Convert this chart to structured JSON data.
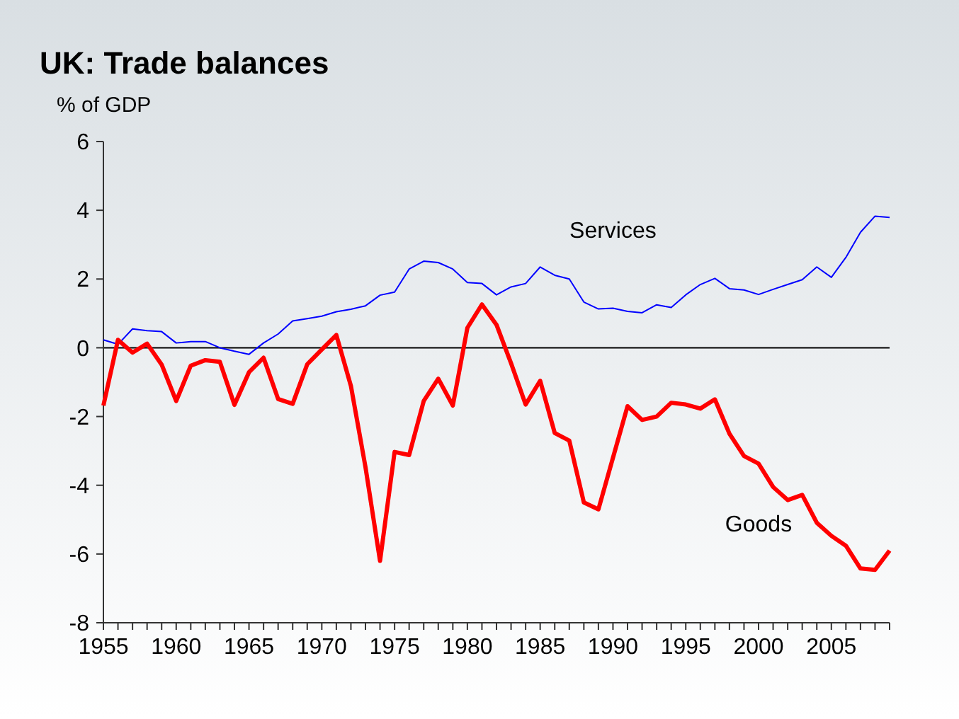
{
  "chart_data": {
    "type": "line",
    "title": "UK: Trade balances",
    "ylabel": "% of GDP",
    "x": [
      1955,
      1956,
      1957,
      1958,
      1959,
      1960,
      1961,
      1962,
      1963,
      1964,
      1965,
      1966,
      1967,
      1968,
      1969,
      1970,
      1971,
      1972,
      1973,
      1974,
      1975,
      1976,
      1977,
      1978,
      1979,
      1980,
      1981,
      1982,
      1983,
      1984,
      1985,
      1986,
      1987,
      1988,
      1989,
      1990,
      1991,
      1992,
      1993,
      1994,
      1995,
      1996,
      1997,
      1998,
      1999,
      2000,
      2001,
      2002,
      2003,
      2004,
      2005,
      2006,
      2007,
      2008,
      2009
    ],
    "series": [
      {
        "name": "Services",
        "color": "#0000ff",
        "values": [
          0.23,
          0.1,
          0.55,
          0.5,
          0.47,
          0.14,
          0.18,
          0.18,
          0,
          -0.1,
          -0.19,
          0.14,
          0.4,
          0.78,
          0.85,
          0.92,
          1.05,
          1.12,
          1.22,
          1.53,
          1.62,
          2.29,
          2.52,
          2.48,
          2.29,
          1.9,
          1.87,
          1.54,
          1.77,
          1.87,
          2.35,
          2.11,
          2.0,
          1.33,
          1.13,
          1.15,
          1.06,
          1.02,
          1.25,
          1.17,
          1.54,
          1.84,
          2.02,
          1.72,
          1.68,
          1.55,
          1.7,
          1.84,
          1.98,
          2.35,
          2.05,
          2.63,
          3.36,
          3.83,
          3.79
        ]
      },
      {
        "name": "Goods",
        "color": "#ff0000",
        "values": [
          -1.68,
          0.23,
          -0.14,
          0.12,
          -0.49,
          -1.55,
          -0.52,
          -0.36,
          -0.41,
          -1.66,
          -0.71,
          -0.29,
          -1.49,
          -1.63,
          -0.48,
          -0.05,
          0.37,
          -1.11,
          -3.47,
          -6.2,
          -3.03,
          -3.12,
          -1.55,
          -0.9,
          -1.68,
          0.58,
          1.26,
          0.67,
          -0.45,
          -1.65,
          -0.96,
          -2.48,
          -2.7,
          -4.5,
          -4.7,
          -3.2,
          -1.7,
          -2.1,
          -2.0,
          -1.6,
          -1.65,
          -1.77,
          -1.5,
          -2.5,
          -3.15,
          -3.37,
          -4.05,
          -4.43,
          -4.28,
          -5.09,
          -5.47,
          -5.76,
          -6.42,
          -6.46,
          -5.9
        ]
      }
    ],
    "xlim": [
      1955,
      2009
    ],
    "xticks": [
      1955,
      {
        "value": 1956,
        "label": null
      },
      {
        "value": 1957,
        "label": null
      },
      {
        "value": 1958,
        "label": null
      },
      {
        "value": 1959,
        "label": null
      },
      1960,
      {
        "value": 1961,
        "label": null
      },
      {
        "value": 1962,
        "label": null
      },
      {
        "value": 1963,
        "label": null
      },
      {
        "value": 1964,
        "label": null
      },
      1965,
      {
        "value": 1966,
        "label": null
      },
      {
        "value": 1967,
        "label": null
      },
      {
        "value": 1968,
        "label": null
      },
      {
        "value": 1969,
        "label": null
      },
      1970,
      {
        "value": 1971,
        "label": null
      },
      {
        "value": 1972,
        "label": null
      },
      {
        "value": 1973,
        "label": null
      },
      {
        "value": 1974,
        "label": null
      },
      1975,
      {
        "value": 1976,
        "label": null
      },
      {
        "value": 1977,
        "label": null
      },
      {
        "value": 1978,
        "label": null
      },
      {
        "value": 1979,
        "label": null
      },
      1980,
      {
        "value": 1981,
        "label": null
      },
      {
        "value": 1982,
        "label": null
      },
      {
        "value": 1983,
        "label": null
      },
      {
        "value": 1984,
        "label": null
      },
      1985,
      {
        "value": 1986,
        "label": null
      },
      {
        "value": 1987,
        "label": null
      },
      {
        "value": 1988,
        "label": null
      },
      {
        "value": 1989,
        "label": null
      },
      1990,
      {
        "value": 1991,
        "label": null
      },
      {
        "value": 1992,
        "label": null
      },
      {
        "value": 1993,
        "label": null
      },
      {
        "value": 1994,
        "label": null
      },
      1995,
      {
        "value": 1996,
        "label": null
      },
      {
        "value": 1997,
        "label": null
      },
      {
        "value": 1998,
        "label": null
      },
      {
        "value": 1999,
        "label": null
      },
      2000,
      {
        "value": 2001,
        "label": null
      },
      {
        "value": 2002,
        "label": null
      },
      {
        "value": 2003,
        "label": null
      },
      {
        "value": 2004,
        "label": null
      },
      2005,
      {
        "value": 2006,
        "label": null
      },
      {
        "value": 2007,
        "label": null
      },
      {
        "value": 2008,
        "label": null
      },
      {
        "value": 2009,
        "label": null
      }
    ],
    "ylim": [
      -8,
      6
    ],
    "yticks": [
      -8,
      -6,
      -4,
      -2,
      0,
      2,
      4,
      6
    ],
    "ref_lines": [
      {
        "axis": "y",
        "value": 0,
        "color": "#000000"
      }
    ],
    "grid": false,
    "line_style": "solid"
  }
}
